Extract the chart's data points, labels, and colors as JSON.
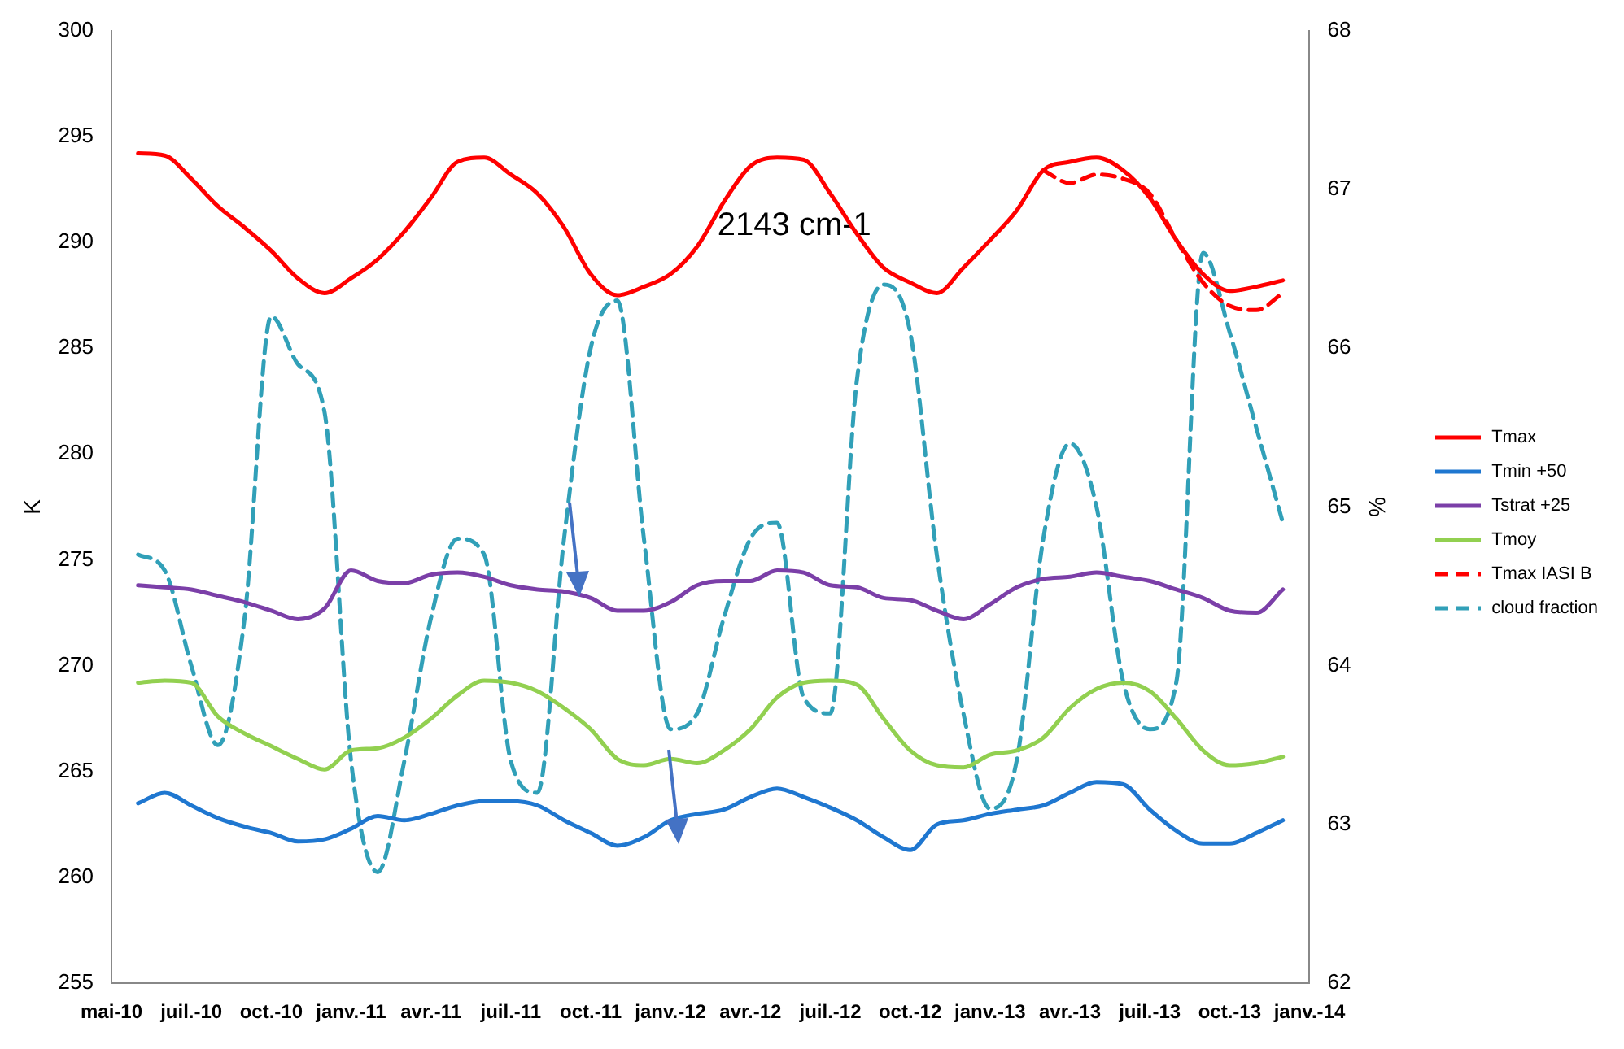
{
  "chart_data": {
    "type": "line",
    "categories": [
      "mai-10",
      null,
      null,
      "juil.-10",
      null,
      null,
      "oct.-10",
      null,
      null,
      "janv.-11",
      null,
      null,
      "avr.-11",
      null,
      null,
      "juil.-11",
      null,
      null,
      "oct.-11",
      null,
      null,
      "janv.-12",
      null,
      null,
      "avr.-12",
      null,
      null,
      "juil.-12",
      null,
      null,
      "oct.-12",
      null,
      null,
      "janv.-13",
      null,
      null,
      "avr.-13",
      null,
      null,
      "juil.-13",
      null,
      null,
      "oct.-13",
      null,
      null,
      "janv.-14"
    ],
    "series": [
      {
        "name": "Tmax",
        "color": "#ff0000",
        "line_style": "solid",
        "values": [
          null,
          294.2,
          294.1,
          293.0,
          291.7,
          290.7,
          289.6,
          288.3,
          287.6,
          288.3,
          289.2,
          290.5,
          292.1,
          293.8,
          294.0,
          293.2,
          292.3,
          290.7,
          288.5,
          287.5,
          287.9,
          288.5,
          289.8,
          291.9,
          293.6,
          294.0,
          293.9,
          292.3,
          290.4,
          288.8,
          288.1,
          287.6,
          288.8,
          290.1,
          291.5,
          293.4,
          293.8,
          294.0,
          293.4,
          292.1,
          290.1,
          288.5,
          287.7,
          287.9,
          288.2,
          null
        ]
      },
      {
        "name": "Tmin +50",
        "color": "#1f77d0",
        "line_style": "solid",
        "values": [
          null,
          263.5,
          264.0,
          263.4,
          262.8,
          262.4,
          262.1,
          261.7,
          261.8,
          262.3,
          262.9,
          262.7,
          263.0,
          263.4,
          263.6,
          263.6,
          263.4,
          262.7,
          262.1,
          261.5,
          261.9,
          262.7,
          263.0,
          263.2,
          263.8,
          264.2,
          263.8,
          263.3,
          262.7,
          261.9,
          261.3,
          262.5,
          262.7,
          263.0,
          263.2,
          263.4,
          264.0,
          264.5,
          264.4,
          263.2,
          262.2,
          261.6,
          261.6,
          262.1,
          262.7,
          null
        ]
      },
      {
        "name": "Tstrat +25",
        "color": "#7b3fa8",
        "line_style": "solid",
        "values": [
          null,
          273.8,
          273.7,
          273.6,
          273.3,
          273.0,
          272.6,
          272.2,
          272.7,
          274.5,
          274.0,
          273.9,
          274.3,
          274.4,
          274.2,
          273.8,
          273.6,
          273.5,
          273.2,
          272.6,
          272.6,
          273.0,
          273.8,
          274.0,
          274.0,
          274.5,
          274.4,
          273.8,
          273.7,
          273.2,
          273.1,
          272.6,
          272.2,
          272.9,
          273.7,
          274.1,
          274.2,
          274.4,
          274.2,
          274.0,
          273.6,
          273.2,
          272.6,
          272.5,
          273.6,
          null
        ]
      },
      {
        "name": "Tmoy",
        "color": "#92d050",
        "line_style": "solid",
        "values": [
          null,
          269.2,
          269.3,
          269.2,
          267.6,
          266.8,
          266.2,
          265.6,
          265.1,
          266.0,
          266.1,
          266.6,
          267.5,
          268.6,
          269.3,
          269.2,
          268.8,
          268.0,
          267.0,
          265.6,
          265.3,
          265.6,
          265.4,
          266.0,
          267.0,
          268.5,
          269.2,
          269.3,
          269.1,
          267.5,
          266.0,
          265.3,
          265.2,
          265.8,
          266.0,
          266.6,
          268.0,
          268.9,
          269.2,
          268.8,
          267.5,
          266.0,
          265.3,
          265.4,
          265.7,
          null
        ]
      },
      {
        "name": "Tmax IASI B",
        "color": "#ff0000",
        "line_style": "dashed",
        "values": [
          null,
          null,
          null,
          null,
          null,
          null,
          null,
          null,
          null,
          null,
          null,
          null,
          null,
          null,
          null,
          null,
          null,
          null,
          null,
          null,
          null,
          null,
          null,
          null,
          null,
          null,
          null,
          null,
          null,
          null,
          null,
          null,
          null,
          null,
          null,
          293.4,
          292.8,
          293.2,
          293.0,
          292.3,
          290.1,
          288.1,
          287.0,
          286.8,
          287.6,
          null
        ]
      },
      {
        "name": "cloud fraction",
        "color": "#31a0b8",
        "line_style": "dashed",
        "axis": "y2",
        "values": [
          null,
          64.7,
          64.6,
          64.0,
          63.5,
          64.3,
          66.2,
          65.9,
          65.6,
          63.4,
          62.7,
          63.4,
          64.3,
          64.8,
          64.7,
          63.4,
          63.2,
          64.8,
          66.0,
          66.3,
          64.8,
          63.6,
          63.7,
          64.3,
          64.8,
          64.9,
          63.8,
          63.7,
          65.8,
          66.4,
          66.1,
          64.7,
          63.7,
          63.1,
          63.4,
          64.8,
          65.4,
          65.0,
          63.9,
          63.6,
          63.9,
          66.6,
          66.1,
          65.5,
          64.9,
          null
        ]
      }
    ],
    "ylabel": "K",
    "y2label": "%",
    "ylim": [
      255,
      300
    ],
    "yticks": [
      255,
      260,
      265,
      270,
      275,
      280,
      285,
      290,
      295,
      300
    ],
    "y2lim": [
      62,
      68
    ],
    "y2ticks": [
      62,
      63,
      64,
      65,
      66,
      67,
      68
    ],
    "annotations": [
      "2143 cm-1"
    ],
    "grid": false,
    "legend": "right",
    "marker": "none"
  }
}
